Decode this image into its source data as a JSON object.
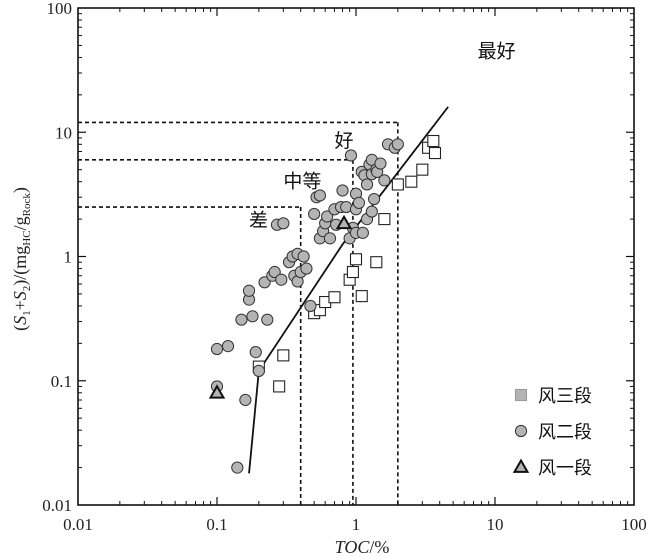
{
  "chart_data": {
    "type": "scatter",
    "xscale": "log",
    "yscale": "log",
    "xlim": [
      0.01,
      100
    ],
    "ylim": [
      0.01,
      100
    ],
    "x_ticks": [
      "0.01",
      "0.1",
      "1",
      "10",
      "100"
    ],
    "y_ticks": [
      "0.01",
      "0.1",
      "1",
      "10",
      "100"
    ],
    "xlabel_italic": "TOC",
    "xlabel_rest": "/%",
    "ylabel": {
      "open": "(",
      "s": "S",
      "sub1": "1",
      "plus": "+",
      "sub2": "2",
      "mid": ")/(mg",
      "hc": "HC",
      "slash": "/g",
      "rock": "Rock",
      "close": ")"
    },
    "grid": false,
    "legend_position": "bottom-right",
    "zones": [
      {
        "label": "差",
        "toc_max": 0.4,
        "s1s2_max": 2.5,
        "label_x": 0.17,
        "label_y": 1.75
      },
      {
        "label": "中等",
        "toc_max": 0.95,
        "s1s2_max": 6,
        "label_x": 0.3,
        "label_y": 3.6
      },
      {
        "label": "好",
        "toc_max": 2.0,
        "s1s2_max": 12,
        "label_x": 0.7,
        "label_y": 7.6
      },
      {
        "label": "最好",
        "label_x": 7.5,
        "label_y": 40
      }
    ],
    "trend_line": {
      "x": [
        0.17,
        0.2,
        0.8,
        4.6
      ],
      "y": [
        0.018,
        0.12,
        1.25,
        16
      ]
    },
    "series": [
      {
        "name": "风三段",
        "marker": "square",
        "points": [
          [
            0.2,
            0.13
          ],
          [
            0.28,
            0.09
          ],
          [
            0.3,
            0.16
          ],
          [
            0.5,
            0.35
          ],
          [
            0.55,
            0.37
          ],
          [
            0.6,
            0.43
          ],
          [
            0.7,
            0.47
          ],
          [
            0.9,
            0.65
          ],
          [
            0.95,
            0.75
          ],
          [
            1.0,
            0.95
          ],
          [
            1.1,
            0.48
          ],
          [
            1.4,
            0.9
          ],
          [
            1.6,
            2.0
          ],
          [
            2.0,
            3.8
          ],
          [
            2.5,
            4.0
          ],
          [
            3.0,
            5.0
          ],
          [
            3.3,
            7.5
          ],
          [
            3.6,
            8.5
          ],
          [
            3.7,
            6.8
          ]
        ]
      },
      {
        "name": "风二段",
        "marker": "circle",
        "points": [
          [
            0.1,
            0.18
          ],
          [
            0.1,
            0.09
          ],
          [
            0.12,
            0.19
          ],
          [
            0.14,
            0.02
          ],
          [
            0.15,
            0.31
          ],
          [
            0.16,
            0.07
          ],
          [
            0.17,
            0.45
          ],
          [
            0.17,
            0.53
          ],
          [
            0.18,
            0.33
          ],
          [
            0.19,
            0.17
          ],
          [
            0.2,
            0.12
          ],
          [
            0.22,
            0.62
          ],
          [
            0.23,
            0.31
          ],
          [
            0.25,
            0.7
          ],
          [
            0.26,
            0.75
          ],
          [
            0.27,
            1.8
          ],
          [
            0.29,
            0.65
          ],
          [
            0.3,
            1.85
          ],
          [
            0.33,
            0.9
          ],
          [
            0.35,
            1.0
          ],
          [
            0.36,
            0.7
          ],
          [
            0.38,
            0.63
          ],
          [
            0.38,
            1.05
          ],
          [
            0.4,
            0.75
          ],
          [
            0.42,
            1.0
          ],
          [
            0.44,
            0.8
          ],
          [
            0.47,
            0.4
          ],
          [
            0.5,
            2.2
          ],
          [
            0.52,
            3.0
          ],
          [
            0.55,
            1.4
          ],
          [
            0.55,
            3.1
          ],
          [
            0.58,
            1.6
          ],
          [
            0.6,
            1.85
          ],
          [
            0.62,
            2.1
          ],
          [
            0.65,
            1.4
          ],
          [
            0.7,
            2.4
          ],
          [
            0.72,
            1.8
          ],
          [
            0.78,
            2.5
          ],
          [
            0.8,
            3.4
          ],
          [
            0.85,
            2.5
          ],
          [
            0.9,
            1.4
          ],
          [
            0.92,
            6.5
          ],
          [
            0.95,
            1.7
          ],
          [
            1.0,
            1.55
          ],
          [
            1.0,
            2.4
          ],
          [
            1.0,
            3.2
          ],
          [
            1.05,
            2.7
          ],
          [
            1.1,
            4.8
          ],
          [
            1.12,
            1.55
          ],
          [
            1.15,
            4.5
          ],
          [
            1.2,
            2.0
          ],
          [
            1.2,
            3.8
          ],
          [
            1.25,
            5.5
          ],
          [
            1.3,
            4.6
          ],
          [
            1.3,
            6.0
          ],
          [
            1.35,
            2.9
          ],
          [
            1.4,
            5.0
          ],
          [
            1.42,
            4.8
          ],
          [
            1.5,
            5.6
          ],
          [
            1.6,
            4.1
          ],
          [
            1.7,
            8.0
          ],
          [
            1.9,
            7.5
          ],
          [
            2.0,
            8.0
          ],
          [
            1.3,
            2.3
          ]
        ]
      },
      {
        "name": "风一段",
        "marker": "triangle",
        "points": [
          [
            0.1,
            0.08
          ],
          [
            0.82,
            1.85
          ]
        ]
      }
    ]
  }
}
